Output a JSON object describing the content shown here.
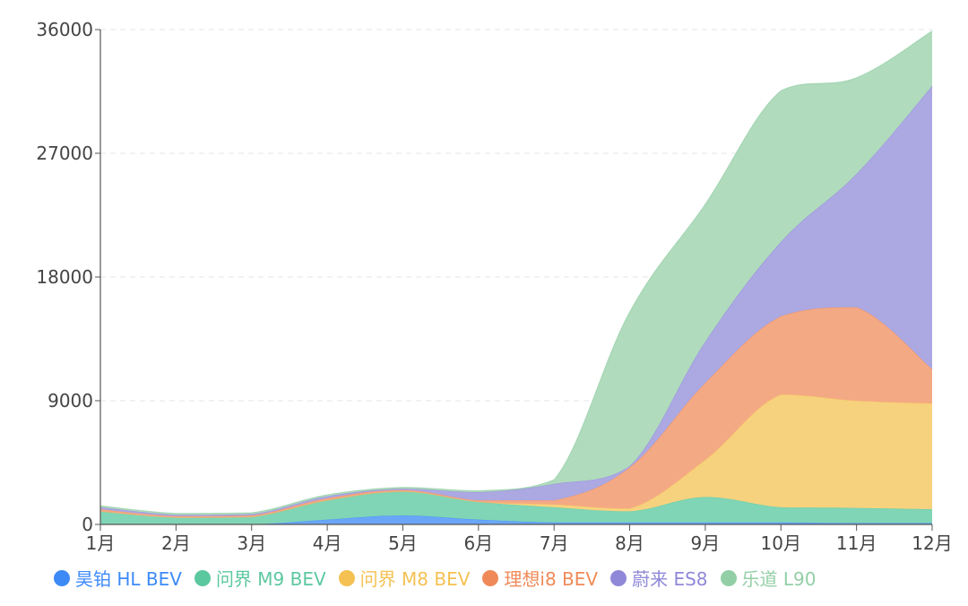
{
  "chart_data": {
    "type": "area",
    "stacked": true,
    "title": "",
    "xlabel": "",
    "ylabel": "",
    "categories": [
      "1月",
      "2月",
      "3月",
      "4月",
      "5月",
      "6月",
      "7月",
      "8月",
      "9月",
      "10月",
      "11月",
      "12月"
    ],
    "ylim": [
      0,
      36000
    ],
    "yticks": [
      0,
      9000,
      18000,
      27000,
      36000
    ],
    "grid": true,
    "legend_position": "bottom",
    "series": [
      {
        "name": "昊铂 HL BEV",
        "color": "#3d8af7",
        "fill": "#6aa6f8",
        "values": [
          0,
          0,
          0,
          350,
          650,
          350,
          150,
          150,
          150,
          150,
          100,
          100
        ]
      },
      {
        "name": "问界 M9 BEV",
        "color": "#5cc8a0",
        "fill": "#7fd5b5",
        "values": [
          950,
          500,
          550,
          1400,
          1750,
          1300,
          1100,
          800,
          1850,
          1100,
          1100,
          1000
        ]
      },
      {
        "name": "问界 M8 BEV",
        "color": "#f5c152",
        "fill": "#f7d27e",
        "values": [
          0,
          0,
          0,
          0,
          0,
          0,
          200,
          200,
          2700,
          8200,
          7800,
          7700
        ]
      },
      {
        "name": "理想i8 BEV",
        "color": "#ef8a58",
        "fill": "#f4a985",
        "values": [
          150,
          100,
          100,
          150,
          100,
          100,
          300,
          3000,
          5600,
          5700,
          6800,
          2500
        ]
      },
      {
        "name": "蔚来 ES8",
        "color": "#8f88d8",
        "fill": "#aba8e2",
        "values": [
          150,
          100,
          100,
          150,
          100,
          600,
          1200,
          100,
          3000,
          5400,
          9700,
          20600
        ]
      },
      {
        "name": "乐道 L90",
        "color": "#93cfa6",
        "fill": "#b0dbbc",
        "values": [
          100,
          100,
          100,
          100,
          100,
          100,
          300,
          11200,
          10000,
          11000,
          7000,
          4000
        ]
      }
    ]
  }
}
